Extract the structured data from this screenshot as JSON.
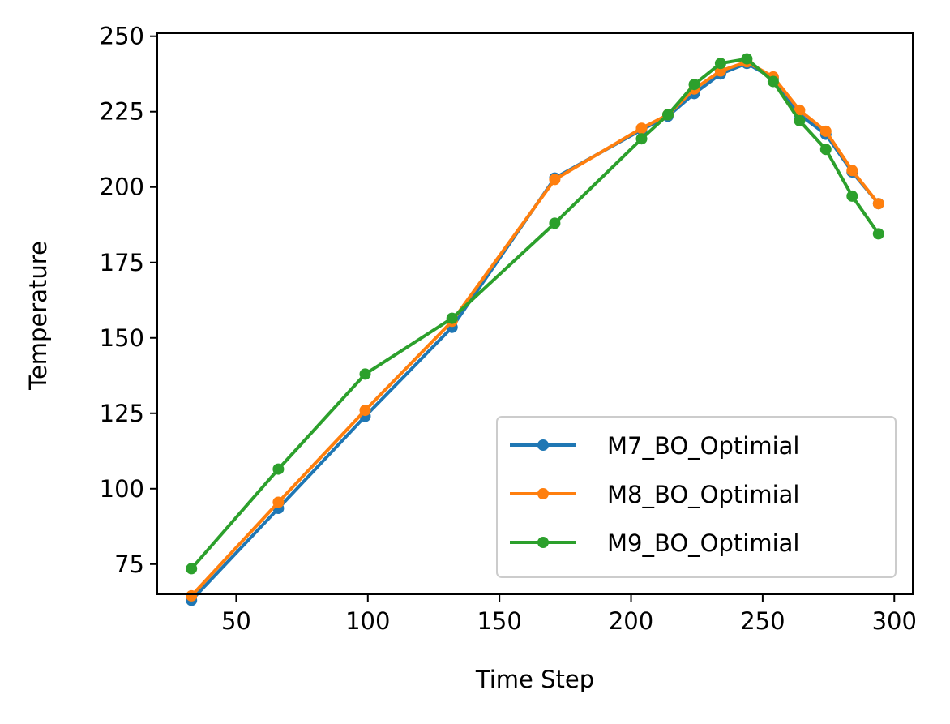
{
  "chart_data": {
    "type": "line",
    "title": "",
    "xlabel": "Time Step",
    "ylabel": "Temperature",
    "xlim": [
      20,
      307
    ],
    "ylim": [
      65,
      251
    ],
    "xticks": [
      50,
      100,
      150,
      200,
      250,
      300
    ],
    "yticks": [
      75,
      100,
      125,
      150,
      175,
      200,
      225,
      250
    ],
    "grid": false,
    "legend_position": "lower right",
    "series": [
      {
        "name": "M7_BO_Optimial",
        "color": "#1f77b4",
        "x": [
          33,
          66,
          99,
          132,
          171,
          204,
          214,
          224,
          234,
          244,
          254,
          264,
          274,
          284,
          294
        ],
        "y": [
          63,
          93.5,
          124,
          153.5,
          203,
          219,
          223.5,
          231,
          237.5,
          241,
          236,
          224,
          217.5,
          205,
          194.5
        ]
      },
      {
        "name": "M8_BO_Optimial",
        "color": "#ff7f0e",
        "x": [
          33,
          66,
          99,
          132,
          171,
          204,
          214,
          224,
          234,
          244,
          254,
          264,
          274,
          284,
          294
        ],
        "y": [
          64.5,
          95.5,
          126,
          155.5,
          202.5,
          219.5,
          224,
          232.5,
          238.5,
          241.5,
          236.5,
          225.5,
          218.5,
          205.5,
          194.5
        ]
      },
      {
        "name": "M9_BO_Optimial",
        "color": "#2ca02c",
        "x": [
          33,
          66,
          99,
          132,
          171,
          204,
          214,
          224,
          234,
          244,
          254,
          264,
          274,
          284,
          294
        ],
        "y": [
          73.5,
          106.5,
          138,
          156.5,
          188,
          216,
          224,
          234,
          241,
          242.5,
          235,
          222,
          212.5,
          197,
          184.5
        ]
      }
    ]
  }
}
